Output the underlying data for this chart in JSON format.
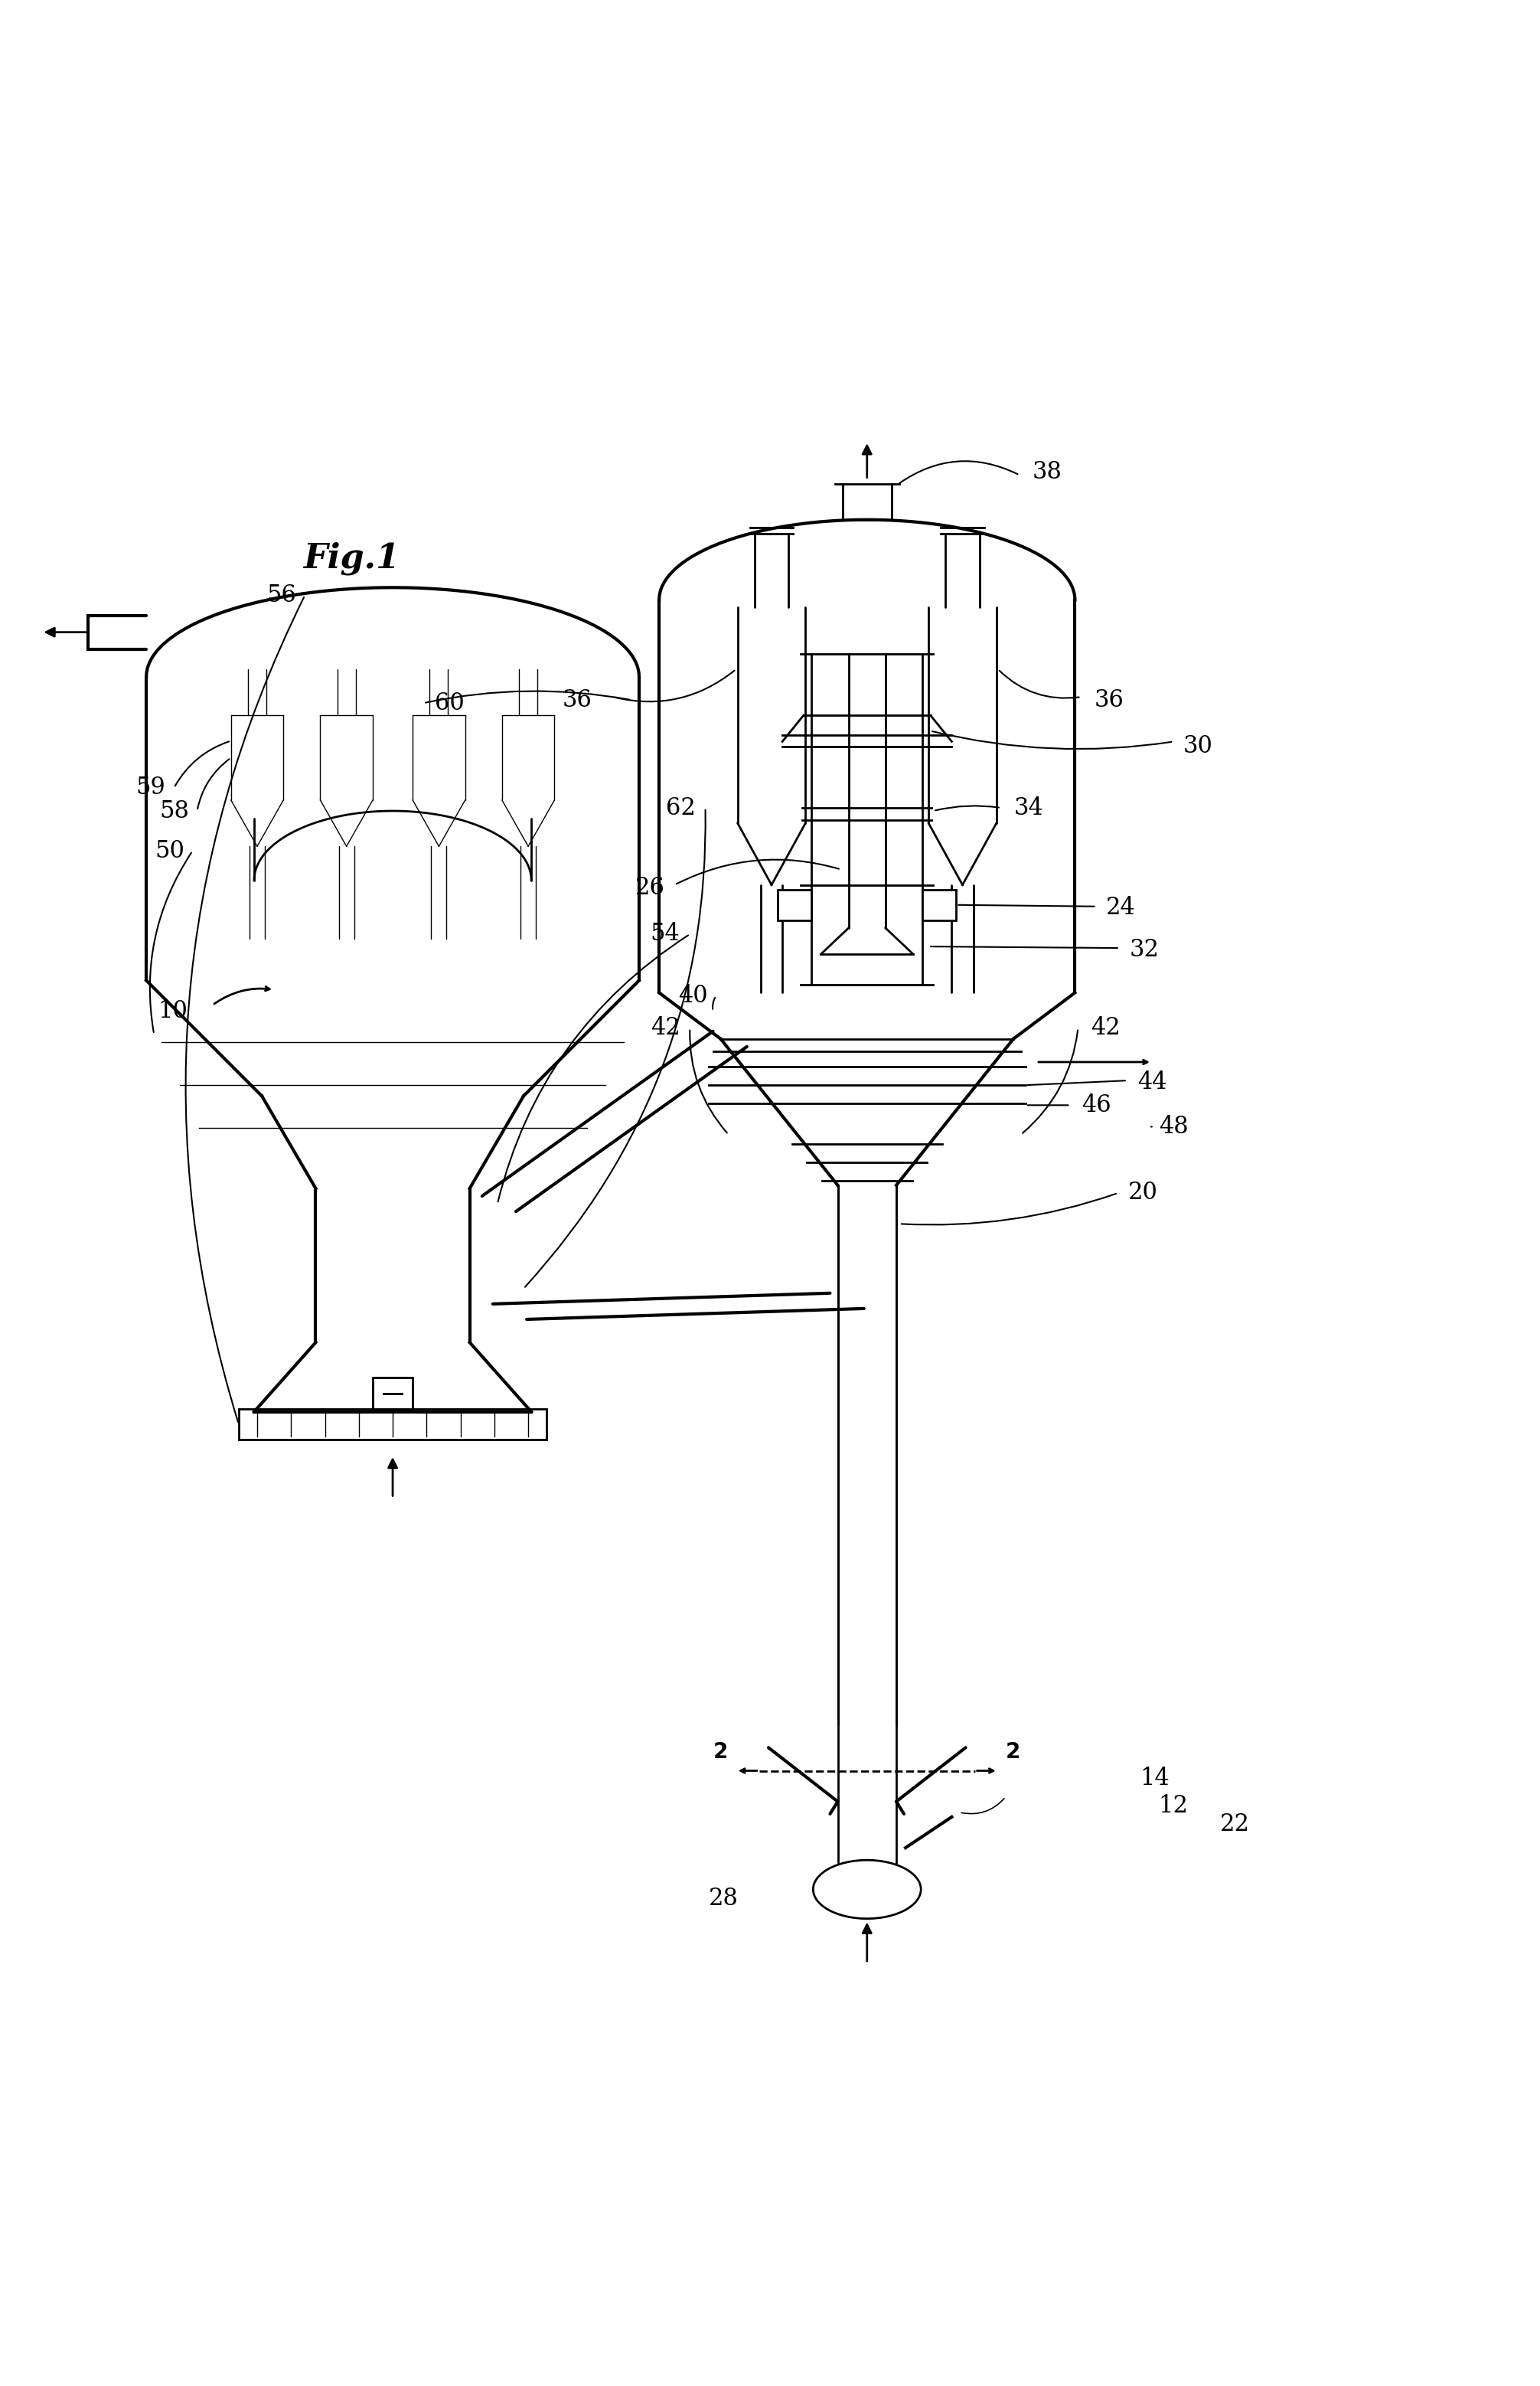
{
  "bg_color": "#ffffff",
  "line_color": "#000000",
  "line_width": 2.0,
  "thick_line": 3.0,
  "thin_line": 1.0,
  "label_fontsize": 22,
  "fig_label_fontsize": 32,
  "title": "Fig.1"
}
